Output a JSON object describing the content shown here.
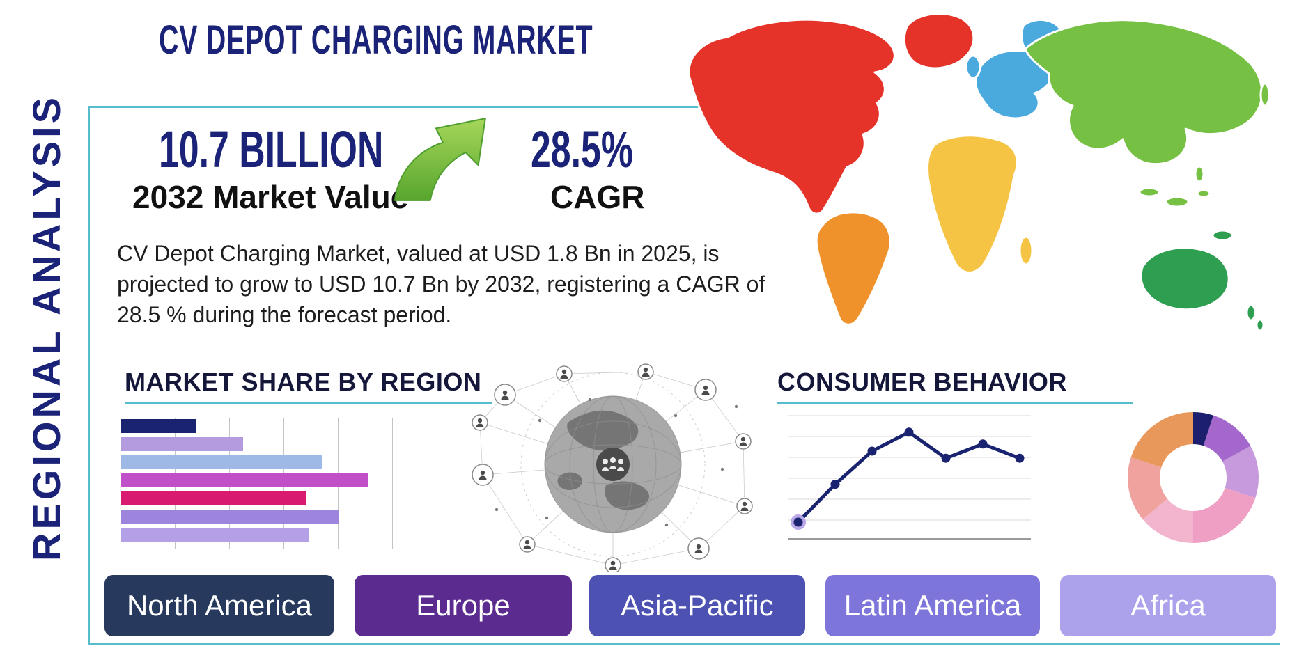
{
  "page": {
    "side_label": "REGIONAL ANALYSIS",
    "title": "CV DEPOT CHARGING MARKET"
  },
  "stats": {
    "market_value": "10.7 BILLION",
    "market_value_label": "2032 Market Value",
    "cagr_value": "28.5%",
    "cagr_label": "CAGR"
  },
  "description": "CV Depot Charging Market, valued at USD 1.8 Bn in 2025, is projected to grow to USD 10.7 Bn by 2032, registering a CAGR of 28.5 % during the forecast period.",
  "sections": {
    "market_share_title": "MARKET SHARE BY REGION",
    "consumer_behavior_title": "CONSUMER BEHAVIOR"
  },
  "region_buttons": [
    {
      "label": "North America",
      "color": "#27395c"
    },
    {
      "label": "Europe",
      "color": "#5c2b90"
    },
    {
      "label": "Asia-Pacific",
      "color": "#4d52b2"
    },
    {
      "label": "Latin America",
      "color": "#7e75da"
    },
    {
      "label": "Africa",
      "color": "#aca2ec"
    }
  ],
  "icons": {
    "growth_arrow_icon": "curved-arrow-up-right-green",
    "global_network_icon": "globe-with-connected-people-nodes",
    "world_map_icon": "colored-continents-world-map"
  },
  "colors": {
    "accent_navy": "#1a2377",
    "frame_teal": "#57bdcd",
    "arrow_green": "#6abf45",
    "map": {
      "north_america": "#e63329",
      "south_america": "#f0922b",
      "europe": "#4aaade",
      "africa": "#f6c445",
      "asia": "#76c043",
      "australia": "#2e9e50"
    }
  },
  "chart_data": [
    {
      "type": "bar",
      "orientation": "horizontal",
      "title": "Market Share by Region",
      "categories": null,
      "values": [
        28,
        45,
        74,
        91,
        68,
        80,
        69
      ],
      "unit": "percent of axis (estimated from bar lengths)",
      "xlim": [
        0,
        100
      ],
      "grid": true,
      "grid_interval_percent": 20,
      "colors": [
        "#1a2370",
        "#b49ade",
        "#9fb9e6",
        "#c04fc8",
        "#d81b70",
        "#9d85dd",
        "#b4a0e6"
      ]
    },
    {
      "type": "line",
      "title": "Consumer Behavior",
      "x": [
        1,
        2,
        3,
        4,
        5,
        6,
        7
      ],
      "values": [
        0.5,
        2.1,
        3.5,
        4.3,
        3.2,
        3.8,
        3.2
      ],
      "ylim": [
        0,
        5
      ],
      "grid": true,
      "color": "#1a2370",
      "first_point_halo_color": "#b9a7e8"
    },
    {
      "type": "pie",
      "title": "Regional share donut",
      "donut": true,
      "start": "top",
      "direction": "clockwise",
      "values": [
        5,
        12,
        13,
        20,
        14,
        16,
        20
      ],
      "colors": [
        "#1b1f6e",
        "#a468cc",
        "#c79ade",
        "#ef9fc4",
        "#f3b5cd",
        "#f0a29e",
        "#e9985c"
      ]
    }
  ]
}
